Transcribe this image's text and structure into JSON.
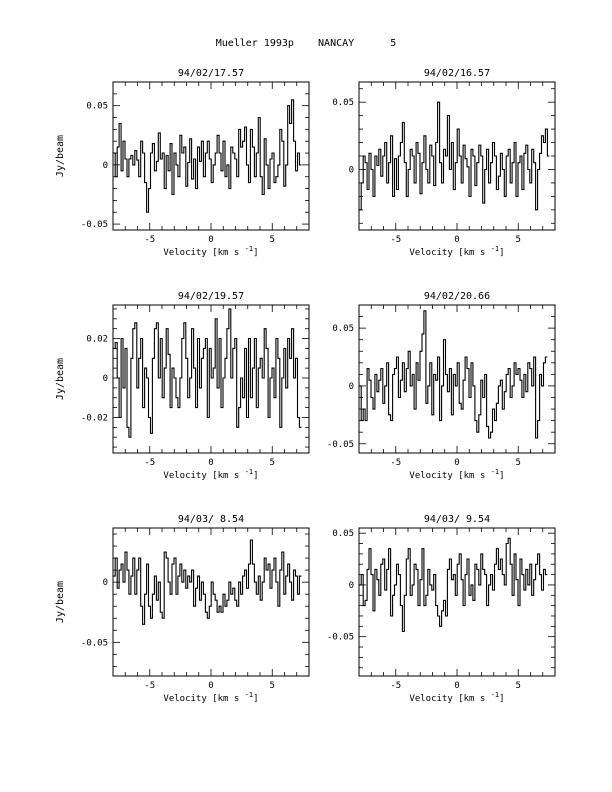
{
  "header": {
    "title": "Mueller 1993p    NANCAY      5"
  },
  "chart_data": [
    {
      "type": "line",
      "step": true,
      "title": "94/02/17.57",
      "xlabel": "Velocity [km s",
      "xlabel_sup": "-1",
      "xlabel_end": "]",
      "ylabel": "Jy/beam",
      "xlim": [
        -8.0,
        8.0
      ],
      "ylim": [
        -0.055,
        0.07
      ],
      "xticks": [
        -5,
        0,
        5
      ],
      "xticklabels": [
        "-5",
        "0",
        "5"
      ],
      "yticks": [
        -0.05,
        0,
        0.05
      ],
      "yticklabels": [
        "-0.05",
        "0",
        "0.05"
      ],
      "series": [
        {
          "x0": -7.9,
          "dx": 0.16,
          "y": [
            0.01,
            -0.01,
            0.015,
            0.035,
            -0.005,
            0.02,
            0.005,
            -0.01,
            0.005,
            0.008,
            0.0,
            0.012,
            0.004,
            -0.01,
            0.02,
            0.01,
            -0.015,
            -0.04,
            -0.02,
            0.01,
            0.018,
            -0.005,
            0.003,
            0.027,
            0.005,
            0.01,
            -0.02,
            0.008,
            -0.005,
            0.018,
            -0.025,
            0.01,
            0.0,
            -0.01,
            0.025,
            0.01,
            0.015,
            -0.018,
            0.002,
            0.022,
            -0.012,
            0.005,
            -0.02,
            0.015,
            0.003,
            0.02,
            -0.01,
            0.01,
            0.02,
            0.005,
            -0.015,
            0.0,
            0.01,
            0.025,
            0.01,
            -0.005,
            0.02,
            -0.01,
            0.0,
            -0.02,
            0.015,
            0.01,
            0.005,
            -0.01,
            0.03,
            0.015,
            0.02,
            0.032,
            0.0,
            -0.015,
            0.03,
            0.015,
            -0.01,
            0.01,
            0.04,
            -0.01,
            -0.025,
            0.022,
            0.0,
            -0.02,
            0.005,
            0.01,
            -0.015,
            -0.01,
            0.0,
            0.03,
            0.02,
            -0.018,
            0.0,
            0.05,
            0.035,
            0.055,
            0.02,
            -0.005,
            0.01,
            0.0
          ]
        }
      ]
    },
    {
      "type": "line",
      "step": true,
      "title": "94/02/16.57",
      "xlabel": "Velocity [km s",
      "xlabel_sup": "-1",
      "xlabel_end": "]",
      "ylabel": "",
      "xlim": [
        -8.0,
        8.0
      ],
      "ylim": [
        -0.045,
        0.065
      ],
      "xticks": [
        -5,
        0,
        5
      ],
      "xticklabels": [
        "-5",
        "0",
        "5"
      ],
      "yticks": [
        0,
        0.05
      ],
      "yticklabels": [
        "0",
        "0.05"
      ],
      "series": [
        {
          "x0": -7.9,
          "dx": 0.16,
          "y": [
            -0.03,
            -0.01,
            0.01,
            0.005,
            -0.015,
            0.012,
            0.0,
            -0.02,
            0.01,
            0.003,
            0.015,
            -0.005,
            0.01,
            0.02,
            -0.01,
            0.005,
            0.025,
            -0.02,
            0.008,
            -0.015,
            0.01,
            0.02,
            0.035,
            0.005,
            -0.02,
            0.0,
            0.015,
            0.01,
            -0.01,
            0.02,
            0.012,
            -0.018,
            0.005,
            0.025,
            0.0,
            -0.01,
            0.018,
            0.01,
            -0.012,
            0.02,
            0.05,
            0.005,
            -0.01,
            0.015,
            0.01,
            0.04,
            0.0,
            0.02,
            -0.015,
            0.005,
            0.03,
            0.01,
            -0.01,
            0.018,
            0.008,
            0.002,
            -0.02,
            0.015,
            0.01,
            -0.012,
            0.005,
            0.018,
            0.01,
            -0.025,
            0.0,
            0.015,
            -0.01,
            0.005,
            0.02,
            0.01,
            -0.015,
            -0.005,
            0.012,
            0.0,
            -0.02,
            0.01,
            0.015,
            -0.01,
            0.005,
            0.02,
            -0.02,
            0.005,
            0.01,
            -0.015,
            0.012,
            0.018,
            0.0,
            -0.01,
            0.015,
            0.005,
            -0.03,
            0.0,
            0.012,
            0.025,
            0.02,
            0.03,
            0.01
          ]
        }
      ]
    },
    {
      "type": "line",
      "step": true,
      "title": "94/02/19.57",
      "xlabel": "Velocity [km s",
      "xlabel_sup": "-1",
      "xlabel_end": "]",
      "ylabel": "Jy/beam",
      "xlim": [
        -8.0,
        8.0
      ],
      "ylim": [
        -0.038,
        0.037
      ],
      "xticks": [
        -5,
        0,
        5
      ],
      "xticklabels": [
        "-5",
        "0",
        "5"
      ],
      "yticks": [
        -0.02,
        0,
        0.02
      ],
      "yticklabels": [
        "-0.02",
        "0",
        "0.02"
      ],
      "series": [
        {
          "x0": -7.9,
          "dx": 0.16,
          "y": [
            0.015,
            0.018,
            0.0,
            -0.02,
            0.02,
            -0.005,
            0.015,
            -0.025,
            -0.03,
            0.01,
            0.025,
            0.028,
            -0.005,
            0.01,
            0.02,
            -0.015,
            0.005,
            0.0,
            -0.02,
            -0.028,
            0.01,
            0.025,
            0.028,
            0.0,
            0.02,
            -0.01,
            0.005,
            0.025,
            0.012,
            -0.015,
            0.005,
            0.0,
            -0.01,
            -0.015,
            0.0,
            0.02,
            0.028,
            0.01,
            -0.01,
            0.0,
            0.025,
            0.005,
            -0.015,
            0.02,
            -0.005,
            0.01,
            0.015,
            0.02,
            -0.02,
            0.015,
            0.0,
            0.005,
            0.03,
            -0.005,
            0.02,
            -0.015,
            0.0,
            0.01,
            0.025,
            0.035,
            0.0,
            0.015,
            0.02,
            -0.025,
            -0.015,
            0.0,
            -0.01,
            0.015,
            -0.02,
            0.02,
            -0.01,
            0.005,
            0.02,
            -0.015,
            0.005,
            0.01,
            0.0,
            0.025,
            0.015,
            -0.02,
            0.0,
            0.005,
            -0.01,
            0.02,
            0.01,
            -0.025,
            0.0,
            0.015,
            -0.005,
            0.02,
            0.01,
            0.025,
            0.0,
            0.01,
            -0.02,
            -0.025
          ]
        }
      ]
    },
    {
      "type": "line",
      "step": true,
      "title": "94/02/20.66",
      "xlabel": "Velocity [km s",
      "xlabel_sup": "-1",
      "xlabel_end": "]",
      "ylabel": "",
      "xlim": [
        -8.0,
        8.0
      ],
      "ylim": [
        -0.058,
        0.07
      ],
      "xticks": [
        -5,
        0,
        5
      ],
      "xticklabels": [
        "-5",
        "0",
        "5"
      ],
      "yticks": [
        -0.05,
        0,
        0.05
      ],
      "yticklabels": [
        "-0.05",
        "0",
        "0.05"
      ],
      "series": [
        {
          "x0": -7.9,
          "dx": 0.16,
          "y": [
            0.0,
            -0.03,
            -0.02,
            -0.03,
            0.015,
            0.005,
            -0.01,
            -0.02,
            0.01,
            -0.005,
            0.005,
            0.015,
            -0.015,
            0.0,
            0.02,
            -0.025,
            -0.03,
            0.01,
            0.015,
            0.025,
            -0.01,
            0.005,
            0.02,
            -0.005,
            0.015,
            0.03,
            0.0,
            0.01,
            -0.02,
            0.02,
            0.005,
            0.03,
            0.045,
            0.065,
            -0.015,
            0.0,
            0.02,
            -0.025,
            0.01,
            0.005,
            0.025,
            -0.03,
            0.0,
            0.04,
            0.01,
            -0.005,
            0.015,
            -0.025,
            0.01,
            0.0,
            0.02,
            -0.015,
            -0.02,
            0.005,
            0.025,
            0.015,
            -0.01,
            0.02,
            0.0,
            -0.03,
            -0.04,
            -0.025,
            0.005,
            -0.01,
            0.01,
            -0.035,
            -0.045,
            -0.04,
            -0.02,
            -0.03,
            -0.015,
            0.0,
            0.005,
            -0.02,
            -0.005,
            0.01,
            0.015,
            -0.01,
            0.0,
            0.02,
            0.01,
            0.015,
            0.005,
            -0.01,
            0.01,
            -0.005,
            0.02,
            0.015,
            0.0,
            0.025,
            -0.045,
            -0.03,
            0.01,
            0.0,
            0.02,
            0.025
          ]
        }
      ]
    },
    {
      "type": "line",
      "step": true,
      "title": "94/03/ 8.54",
      "xlabel": "Velocity [km s",
      "xlabel_sup": "-1",
      "xlabel_end": "]",
      "ylabel": "Jy/beam",
      "xlim": [
        -8.0,
        8.0
      ],
      "ylim": [
        -0.078,
        0.045
      ],
      "xticks": [
        -5,
        0,
        5
      ],
      "xticklabels": [
        "-5",
        "0",
        "5"
      ],
      "yticks": [
        -0.05,
        0
      ],
      "yticklabels": [
        "-0.05",
        "0"
      ],
      "series": [
        {
          "x0": -7.9,
          "dx": 0.16,
          "y": [
            0.005,
            0.02,
            -0.005,
            0.01,
            0.015,
            0.0,
            0.025,
            0.01,
            -0.01,
            0.005,
            0.02,
            -0.01,
            0.01,
            0.02,
            -0.02,
            -0.035,
            -0.01,
            0.015,
            -0.02,
            -0.03,
            -0.01,
            0.005,
            -0.015,
            0.0,
            -0.025,
            -0.03,
            0.025,
            0.02,
            0.0,
            -0.01,
            0.015,
            0.02,
            -0.01,
            0.005,
            0.015,
            0.0,
            0.01,
            -0.005,
            0.005,
            0.0,
            0.01,
            -0.02,
            -0.005,
            0.005,
            -0.015,
            0.0,
            -0.01,
            -0.025,
            -0.03,
            -0.02,
            0.0,
            -0.01,
            -0.015,
            -0.025,
            -0.02,
            -0.025,
            -0.01,
            -0.02,
            -0.015,
            0.0,
            -0.01,
            -0.005,
            -0.015,
            -0.02,
            0.0,
            -0.01,
            0.005,
            0.01,
            -0.005,
            0.015,
            0.035,
            0.015,
            0.0,
            -0.01,
            0.005,
            -0.015,
            0.0,
            0.02,
            0.01,
            0.015,
            -0.005,
            0.01,
            0.02,
            0.0,
            -0.02,
            0.01,
            0.025,
            -0.01,
            0.005,
            0.015,
            0.0,
            -0.015,
            0.01,
            0.005,
            -0.01,
            0.005
          ]
        }
      ]
    },
    {
      "type": "line",
      "step": true,
      "title": "94/03/ 9.54",
      "xlabel": "Velocity [km s",
      "xlabel_sup": "-1",
      "xlabel_end": "]",
      "ylabel": "",
      "xlim": [
        -8.0,
        8.0
      ],
      "ylim": [
        -0.088,
        0.055
      ],
      "xticks": [
        -5,
        0,
        5
      ],
      "xticklabels": [
        "-5",
        "0",
        "5"
      ],
      "yticks": [
        -0.05,
        0,
        0.05
      ],
      "yticklabels": [
        "-0.05",
        "0",
        "0.05"
      ],
      "series": [
        {
          "x0": -7.9,
          "dx": 0.16,
          "y": [
            0.0,
            0.01,
            -0.02,
            -0.015,
            0.015,
            0.035,
            0.01,
            -0.025,
            0.015,
            0.005,
            -0.01,
            0.02,
            0.025,
            -0.005,
            0.015,
            0.035,
            -0.03,
            -0.01,
            0.0,
            0.02,
            0.01,
            -0.02,
            -0.045,
            -0.01,
            0.025,
            0.035,
            -0.01,
            0.0,
            0.02,
            0.015,
            -0.02,
            0.005,
            0.035,
            -0.02,
            -0.01,
            0.015,
            0.0,
            -0.005,
            0.01,
            -0.02,
            -0.03,
            -0.04,
            -0.025,
            -0.015,
            -0.03,
            0.015,
            0.025,
            0.005,
            0.01,
            -0.01,
            0.02,
            0.03,
            0.005,
            -0.02,
            0.01,
            0.025,
            -0.01,
            0.0,
            -0.015,
            0.02,
            0.015,
            0.0,
            0.03,
            0.015,
            0.01,
            -0.02,
            0.0,
            0.01,
            -0.005,
            0.02,
            0.035,
            0.015,
            0.025,
            0.01,
            0.0,
            0.04,
            0.045,
            0.02,
            -0.01,
            0.03,
            0.005,
            -0.02,
            0.025,
            0.01,
            -0.005,
            0.015,
            0.0,
            0.02,
            -0.01,
            0.005,
            0.02,
            0.03,
            0.01,
            -0.005,
            0.015,
            0.01
          ]
        }
      ]
    }
  ]
}
